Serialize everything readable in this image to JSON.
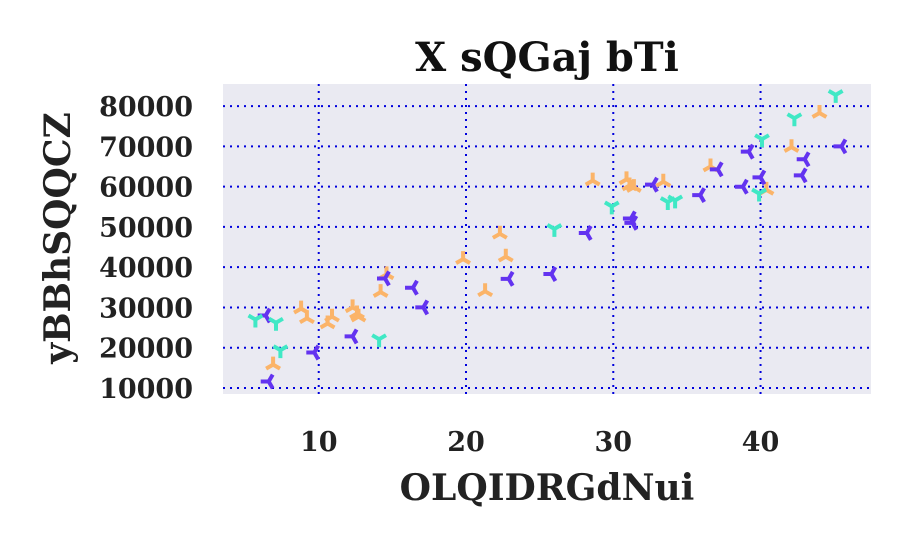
{
  "chart_data": {
    "type": "scatter",
    "title": "X sQGaj bTi",
    "xlabel": "OLQIDRGdNui",
    "ylabel": "yBBhSQQCZ",
    "xlim": [
      3.5,
      47.5
    ],
    "ylim": [
      8500,
      85500
    ],
    "xticks": [
      10,
      20,
      30,
      40
    ],
    "yticks": [
      10000,
      20000,
      30000,
      40000,
      50000,
      60000,
      70000,
      80000
    ],
    "grid": true,
    "grid_color": "#0000dd",
    "background": "#eaeaf2",
    "marker": "tri",
    "series": [
      {
        "color": "#fbb469",
        "orientation": "up",
        "points": [
          [
            6.9,
            15800
          ],
          [
            8.8,
            29700
          ],
          [
            9.2,
            27300
          ],
          [
            10.6,
            26000
          ],
          [
            10.9,
            27700
          ],
          [
            12.3,
            30000
          ],
          [
            12.6,
            28500
          ],
          [
            12.7,
            27700
          ],
          [
            14.2,
            33800
          ],
          [
            14.6,
            38200
          ],
          [
            19.8,
            42000
          ],
          [
            21.3,
            34000
          ],
          [
            22.3,
            48300
          ],
          [
            22.7,
            42600
          ],
          [
            28.6,
            61500
          ],
          [
            30.9,
            61800
          ],
          [
            31.1,
            60300
          ],
          [
            31.4,
            59900
          ],
          [
            33.4,
            61200
          ],
          [
            36.6,
            65000
          ],
          [
            40.4,
            59200
          ],
          [
            42.1,
            69800
          ],
          [
            44.0,
            78300
          ]
        ]
      },
      {
        "color": "#6333f0",
        "orientation": "left",
        "points": [
          [
            6.4,
            28000
          ],
          [
            6.6,
            11600
          ],
          [
            9.7,
            18800
          ],
          [
            12.3,
            22800
          ],
          [
            14.5,
            37200
          ],
          [
            16.4,
            34900
          ],
          [
            17.1,
            30000
          ],
          [
            22.9,
            37100
          ],
          [
            25.8,
            38300
          ],
          [
            28.2,
            48500
          ],
          [
            31.2,
            52100
          ],
          [
            31.3,
            51000
          ],
          [
            32.7,
            60500
          ],
          [
            35.9,
            57900
          ],
          [
            37.1,
            64300
          ],
          [
            38.8,
            60000
          ],
          [
            39.2,
            68700
          ],
          [
            40.0,
            62300
          ],
          [
            43.0,
            66800
          ],
          [
            42.8,
            62800
          ],
          [
            45.5,
            70000
          ]
        ]
      },
      {
        "color": "#40e8c5",
        "orientation": "down",
        "points": [
          [
            5.7,
            27000
          ],
          [
            7.1,
            26200
          ],
          [
            7.4,
            19400
          ],
          [
            14.1,
            22100
          ],
          [
            26.0,
            49500
          ],
          [
            29.9,
            55100
          ],
          [
            33.7,
            56200
          ],
          [
            34.2,
            56600
          ],
          [
            39.9,
            58300
          ],
          [
            40.1,
            71800
          ],
          [
            42.3,
            77000
          ],
          [
            45.1,
            82800
          ]
        ]
      }
    ]
  }
}
